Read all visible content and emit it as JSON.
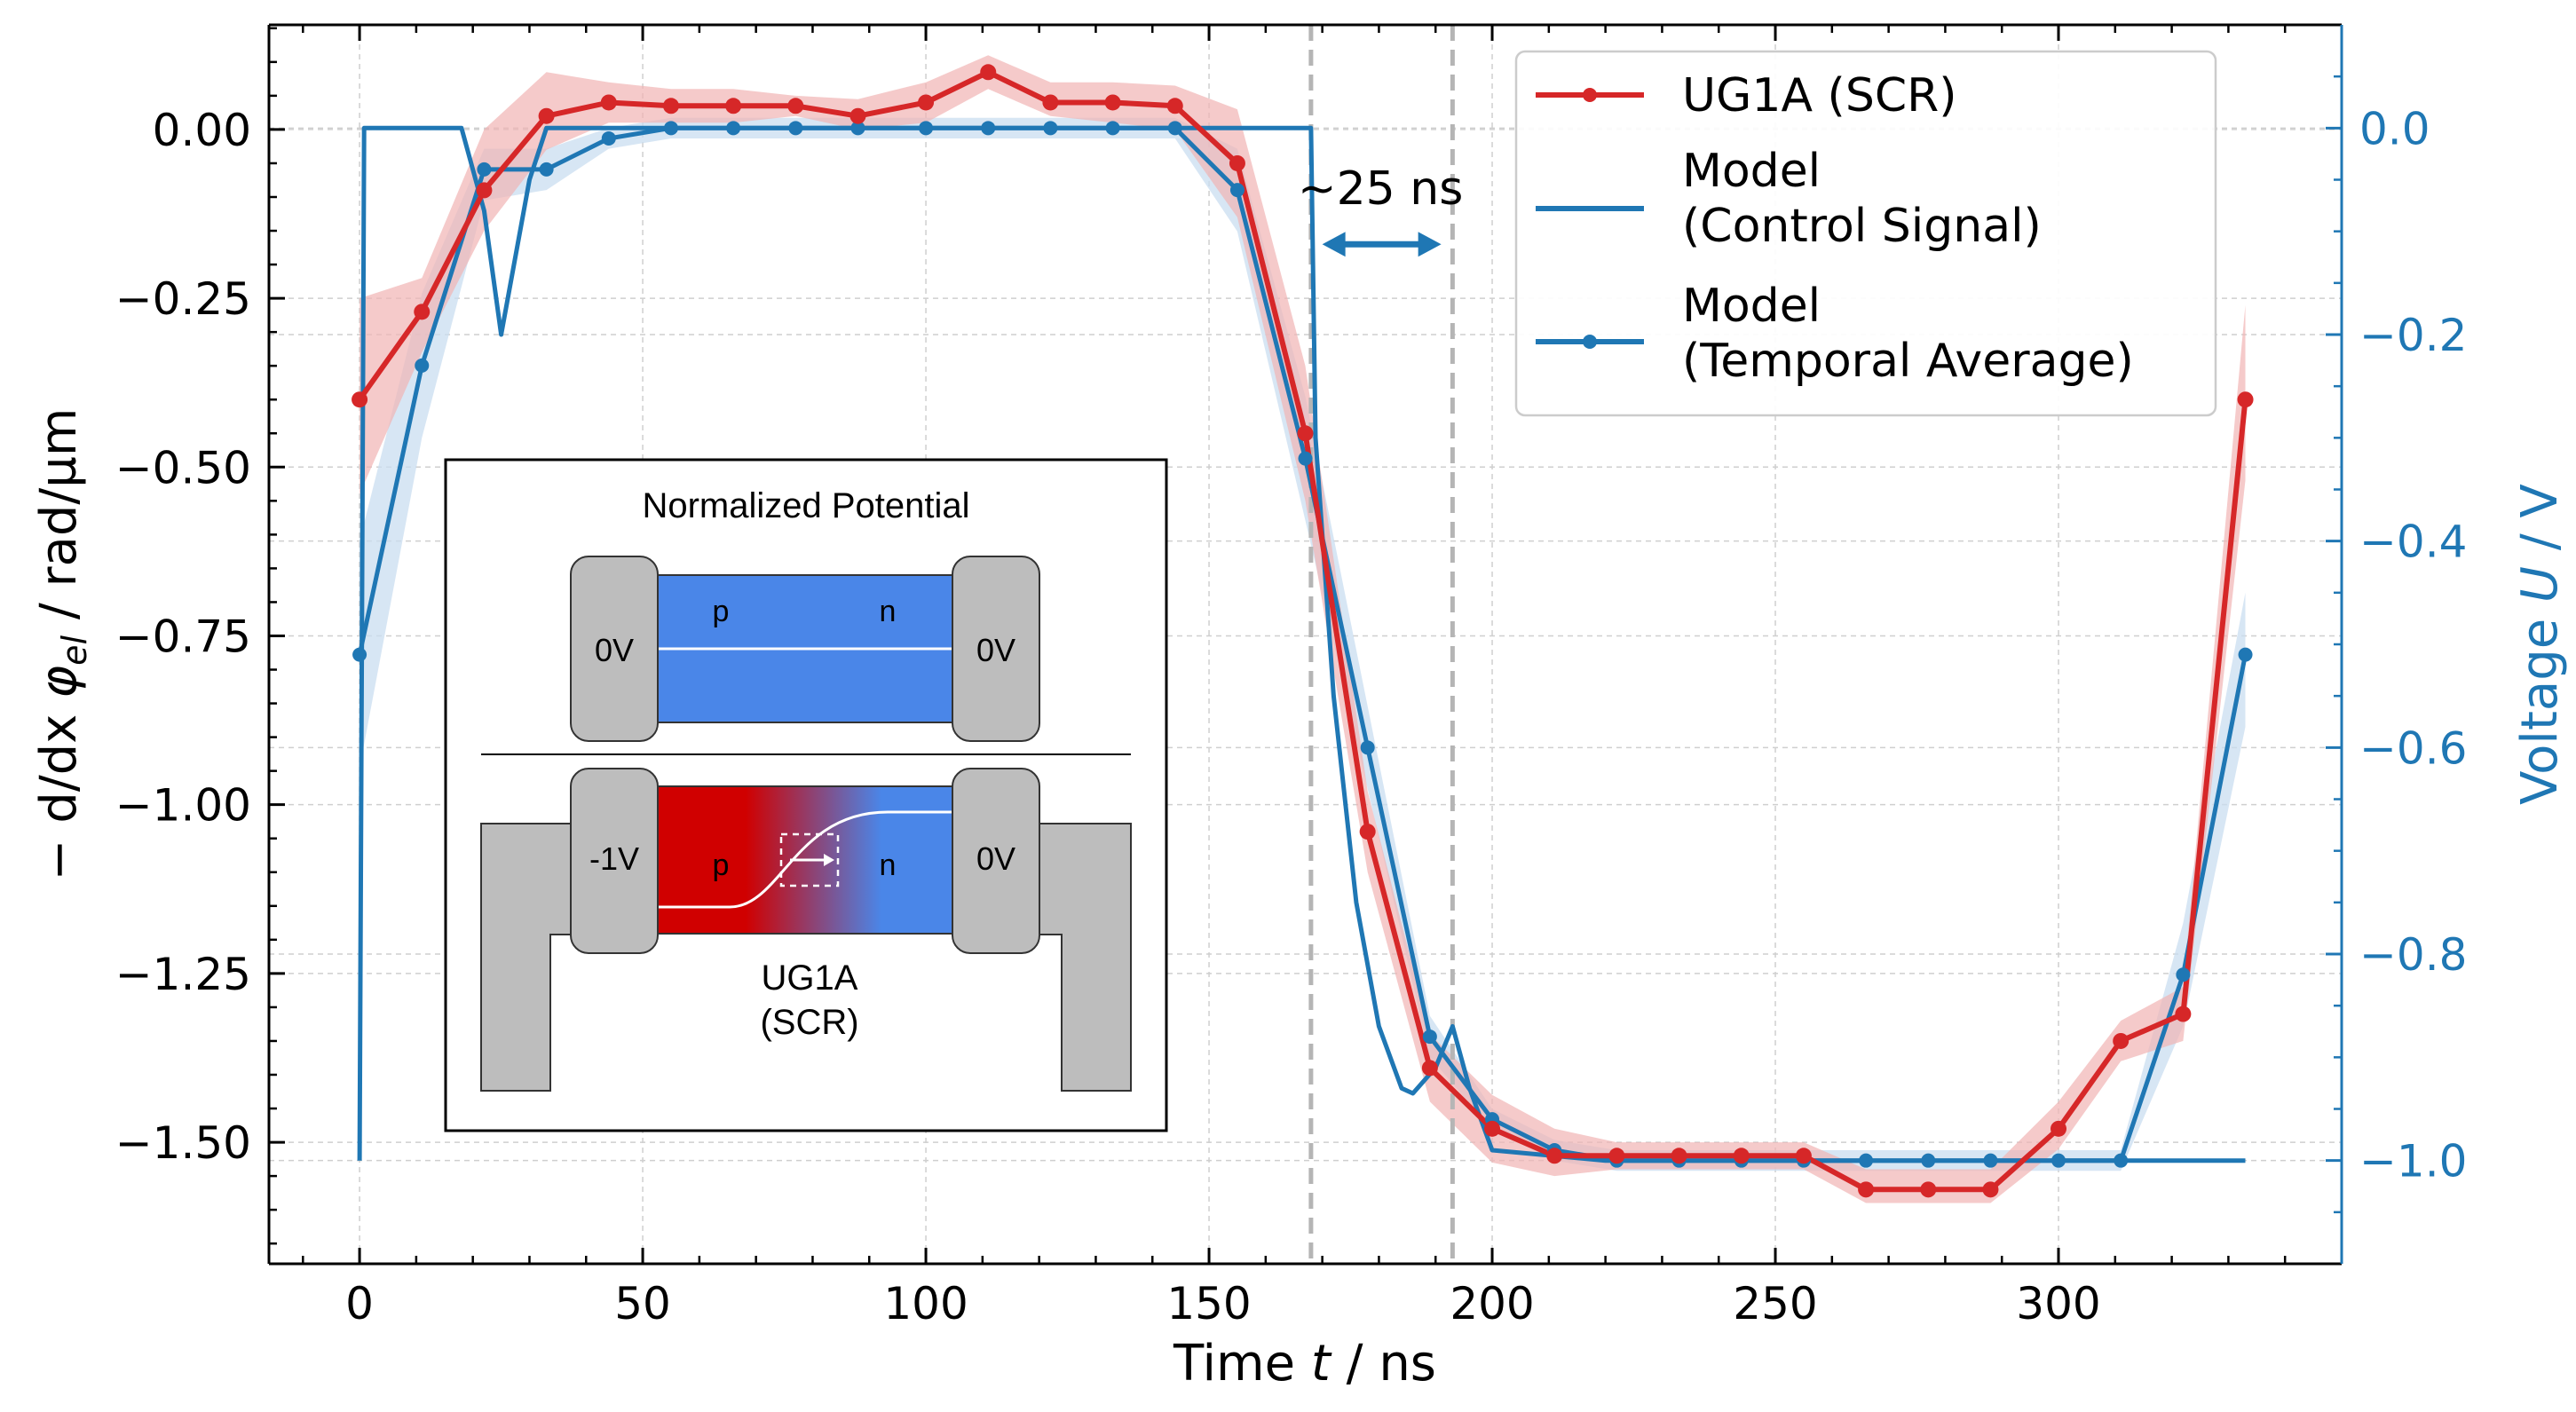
{
  "colors": {
    "red": "#d62728",
    "blue": "#1f77b4",
    "red_band": "#f1b3b4",
    "blue_band": "#c9def0",
    "inset_blue": "#4a86e8",
    "inset_red": "#d00000",
    "inset_gray": "#bdbdbd"
  },
  "chart_data": {
    "type": "line",
    "xlabel": "Time t / ns",
    "ylabel_left": "− d/dx φel / rad/µm",
    "ylabel_right": "Voltage U / V",
    "xlim": [
      -16,
      350
    ],
    "ylim_left": [
      -1.68,
      0.155
    ],
    "ylim_right": [
      -1.1,
      0.1
    ],
    "x_ticks": [
      0,
      50,
      100,
      150,
      200,
      250,
      300
    ],
    "x_tick_labels": [
      "0",
      "50",
      "100",
      "150",
      "200",
      "250",
      "300"
    ],
    "y_left_ticks": [
      0.0,
      -0.25,
      -0.5,
      -0.75,
      -1.0,
      -1.25,
      -1.5
    ],
    "y_left_tick_labels": [
      "0.00",
      "−0.25",
      "−0.50",
      "−0.75",
      "−1.00",
      "−1.25",
      "−1.50"
    ],
    "y_right_ticks": [
      0.0,
      -0.2,
      -0.4,
      -0.6,
      -0.8,
      -1.0
    ],
    "y_right_tick_labels": [
      "0.0",
      "−0.2",
      "−0.4",
      "−0.6",
      "−0.8",
      "−1.0"
    ],
    "grid": true,
    "vlines": [
      168,
      193
    ],
    "annotation": {
      "text": "~25 ns",
      "x_start": 170,
      "x_end": 191,
      "y": -0.17
    },
    "legend": {
      "placement": "top-right",
      "entries": [
        {
          "label": "UG1A (SCR)",
          "style": "line-marker",
          "color": "red"
        },
        {
          "label_line1": "Model",
          "label_line2": "(Control Signal)",
          "style": "line",
          "color": "blue"
        },
        {
          "label_line1": "Model",
          "label_line2": "(Temporal Average)",
          "style": "line-marker",
          "color": "blue"
        }
      ]
    },
    "series": [
      {
        "name": "UG1A (SCR)",
        "axis": "left",
        "color": "red",
        "x": [
          0,
          11,
          22,
          33,
          44,
          55,
          66,
          77,
          88,
          100,
          111,
          122,
          133,
          144,
          155,
          167,
          178,
          189,
          200,
          211,
          222,
          233,
          244,
          255,
          266,
          277,
          288,
          300,
          311,
          322,
          333
        ],
        "y": [
          -0.4,
          -0.27,
          -0.09,
          0.02,
          0.04,
          0.035,
          0.035,
          0.035,
          0.02,
          0.04,
          0.085,
          0.04,
          0.04,
          0.035,
          -0.05,
          -0.45,
          -1.04,
          -1.39,
          -1.48,
          -1.52,
          -1.52,
          -1.52,
          -1.52,
          -1.52,
          -1.57,
          -1.57,
          -1.57,
          -1.48,
          -1.35,
          -1.31,
          -0.4
        ],
        "band_low": [
          -0.54,
          -0.33,
          -0.15,
          -0.03,
          0.01,
          0.01,
          0.01,
          0.02,
          0.0,
          0.01,
          0.06,
          0.02,
          0.01,
          0.0,
          -0.13,
          -0.55,
          -1.1,
          -1.44,
          -1.53,
          -1.55,
          -1.54,
          -1.54,
          -1.54,
          -1.54,
          -1.59,
          -1.59,
          -1.59,
          -1.51,
          -1.38,
          -1.35,
          -0.52
        ],
        "band_high": [
          -0.25,
          -0.22,
          0.0,
          0.085,
          0.07,
          0.06,
          0.06,
          0.05,
          0.045,
          0.07,
          0.11,
          0.07,
          0.07,
          0.065,
          0.03,
          -0.35,
          -0.98,
          -1.34,
          -1.43,
          -1.48,
          -1.5,
          -1.5,
          -1.5,
          -1.5,
          -1.54,
          -1.54,
          -1.54,
          -1.44,
          -1.32,
          -1.27,
          -0.26
        ]
      },
      {
        "name": "Model (Control Signal)",
        "axis": "right",
        "color": "blue",
        "x": [
          0,
          0.8,
          18,
          22,
          25,
          30,
          33,
          168,
          168.8,
          172,
          176,
          180,
          184,
          186,
          190,
          193,
          196,
          200,
          220,
          310,
          333
        ],
        "y": [
          -1.0,
          0.0,
          0.0,
          -0.08,
          -0.2,
          -0.05,
          0.0,
          0.0,
          -0.3,
          -0.55,
          -0.75,
          -0.87,
          -0.93,
          -0.935,
          -0.91,
          -0.87,
          -0.93,
          -0.99,
          -1.0,
          -1.0,
          -1.0
        ]
      },
      {
        "name": "Model (Temporal Average)",
        "axis": "right",
        "color": "blue",
        "x": [
          0,
          11,
          22,
          33,
          44,
          55,
          66,
          77,
          88,
          100,
          111,
          122,
          133,
          144,
          155,
          167,
          178,
          189,
          200,
          211,
          222,
          233,
          244,
          255,
          266,
          277,
          288,
          300,
          311,
          322,
          333
        ],
        "y": [
          -0.51,
          -0.23,
          -0.04,
          -0.04,
          -0.01,
          0.0,
          0.0,
          0.0,
          0.0,
          0.0,
          0.0,
          0.0,
          0.0,
          0.0,
          -0.06,
          -0.32,
          -0.6,
          -0.88,
          -0.96,
          -0.99,
          -1.0,
          -1.0,
          -1.0,
          -1.0,
          -1.0,
          -1.0,
          -1.0,
          -1.0,
          -1.0,
          -0.82,
          -0.51
        ],
        "band_low": [
          -0.62,
          -0.3,
          -0.07,
          -0.06,
          -0.02,
          -0.01,
          -0.01,
          -0.01,
          -0.01,
          -0.01,
          -0.01,
          -0.01,
          -0.01,
          -0.01,
          -0.1,
          -0.38,
          -0.64,
          -0.9,
          -0.97,
          -1.0,
          -1.01,
          -1.01,
          -1.01,
          -1.01,
          -1.01,
          -1.01,
          -1.01,
          -1.01,
          -1.01,
          -0.87,
          -0.58
        ],
        "band_high": [
          -0.4,
          -0.16,
          -0.02,
          -0.02,
          0.0,
          0.01,
          0.01,
          0.01,
          0.01,
          0.01,
          0.01,
          0.01,
          0.01,
          0.01,
          -0.02,
          -0.26,
          -0.56,
          -0.86,
          -0.95,
          -0.98,
          -0.99,
          -0.99,
          -0.99,
          -0.99,
          -0.99,
          -0.99,
          -0.99,
          -0.99,
          -0.99,
          -0.77,
          -0.45
        ]
      }
    ],
    "inset": {
      "title": "Normalized Potential",
      "top_diagram": {
        "left_contact": "0V",
        "right_contact": "0V",
        "p_label": "p",
        "n_label": "n"
      },
      "bottom_diagram": {
        "left_contact": "-1V",
        "right_contact": "0V",
        "p_label": "p",
        "n_label": "n",
        "device_label_line1": "UG1A",
        "device_label_line2": "(SCR)"
      }
    }
  }
}
